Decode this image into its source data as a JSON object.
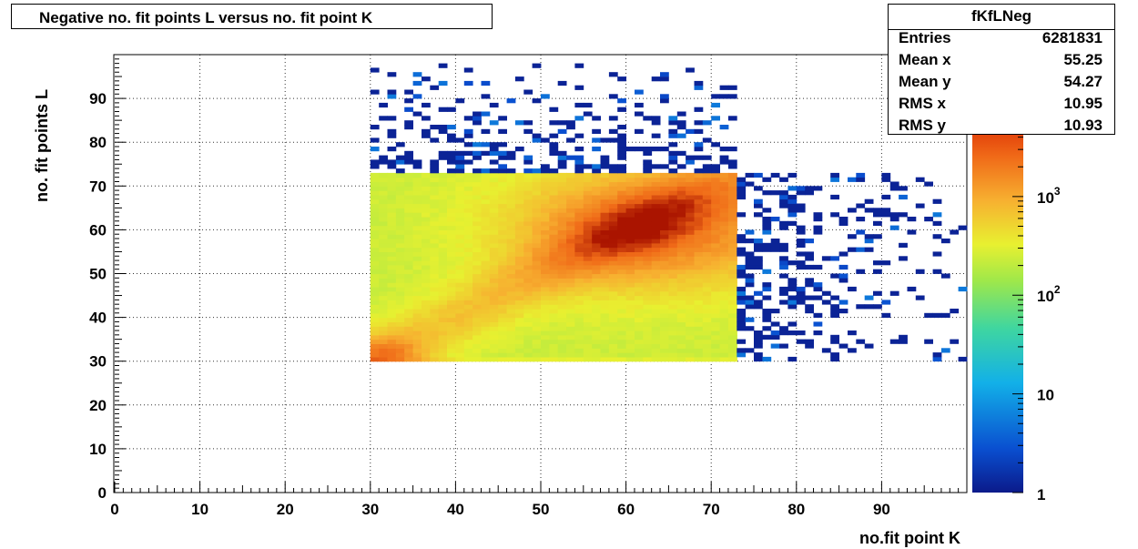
{
  "chart_data": {
    "type": "heatmap",
    "title": "Negative no. fit points L versus no. fit point K",
    "xlabel": "no.fit point K",
    "ylabel": "no. fit points  L",
    "xlim": [
      0,
      100
    ],
    "ylim": [
      0,
      100
    ],
    "x_ticks": [
      "0",
      "10",
      "20",
      "30",
      "40",
      "50",
      "60",
      "70",
      "80",
      "90"
    ],
    "y_ticks": [
      "0",
      "10",
      "20",
      "30",
      "40",
      "50",
      "60",
      "70",
      "80",
      "90"
    ],
    "grid": true,
    "color_scale": "log",
    "colorbar_ticks": [
      {
        "base": "1",
        "exp": ""
      },
      {
        "base": "10",
        "exp": ""
      },
      {
        "base": "10",
        "exp": "2"
      },
      {
        "base": "10",
        "exp": "3"
      }
    ],
    "dense_region": {
      "x_range": [
        30,
        73
      ],
      "y_range": [
        30,
        73
      ],
      "peak": [
        61,
        60
      ],
      "diagonal_ridge": true,
      "corner_peak": [
        31,
        31
      ]
    },
    "sparse_regions": [
      {
        "x_range": [
          30,
          73
        ],
        "y_range": [
          73,
          100
        ]
      },
      {
        "x_range": [
          73,
          100
        ],
        "y_range": [
          30,
          73
        ]
      }
    ]
  },
  "stats": {
    "name": "fKfLNeg",
    "rows": [
      {
        "label": "Entries",
        "value": "6281831"
      },
      {
        "label": "Mean x",
        "value": "55.25"
      },
      {
        "label": "Mean y",
        "value": "54.27"
      },
      {
        "label": "RMS x",
        "value": "10.95"
      },
      {
        "label": "RMS y",
        "value": "10.93"
      }
    ]
  }
}
